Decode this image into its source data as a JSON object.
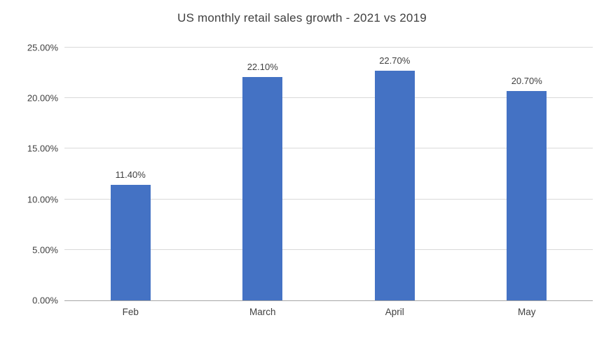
{
  "chart_data": {
    "type": "bar",
    "title": "US monthly retail sales growth - 2021 vs 2019",
    "categories": [
      "Feb",
      "March",
      "April",
      "May"
    ],
    "values": [
      11.4,
      22.1,
      22.7,
      20.7
    ],
    "value_labels": [
      "11.40%",
      "22.10%",
      "22.70%",
      "20.70%"
    ],
    "y_ticks": [
      0,
      5,
      10,
      15,
      20,
      25
    ],
    "y_tick_labels": [
      "0.00%",
      "5.00%",
      "10.00%",
      "15.00%",
      "20.00%",
      "25.00%"
    ],
    "ylim": [
      0,
      25
    ],
    "xlabel": "",
    "ylabel": "",
    "legend": "none",
    "grid": "horizontal",
    "colors": {
      "bar": "#4472C4",
      "gridline": "#D9D9D9",
      "axis": "#A6A6A6",
      "title_text": "#404040",
      "tick_text": "#404040",
      "value_label_text": "#404040",
      "background": "#FFFFFF"
    }
  }
}
